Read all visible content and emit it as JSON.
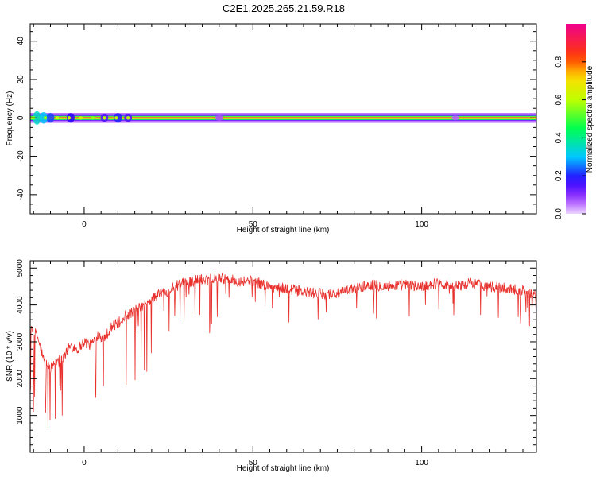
{
  "title": "C2E1.2025.265.21.59.R18",
  "chart_data": [
    {
      "type": "heatmap",
      "xlabel": "Height of straight line (km)",
      "ylabel": "Frequency (Hz)",
      "xlim": [
        -16,
        134
      ],
      "ylim": [
        -50,
        49
      ],
      "xticks": [
        0,
        50,
        100
      ],
      "yticks": [
        40,
        20,
        0,
        -20,
        -40
      ],
      "grid": false,
      "colorbar": {
        "label": "Normalized spectral amplitude",
        "range": [
          0,
          1
        ],
        "ticks": [
          0.0,
          0.2,
          0.4,
          0.6,
          0.8
        ],
        "tick_labels": [
          "0.0",
          "0.2",
          "0.4",
          "0.6",
          "0.8"
        ],
        "colormap": "rainbow (violet to magenta)"
      },
      "band": {
        "center_hz": 0,
        "halfwidth_hz": 1.5,
        "outer_halfwidth_hz": 2.6,
        "peak_amplitude": 0.95
      }
    },
    {
      "type": "line",
      "xlabel": "Height of straight line (km)",
      "ylabel": "SNR (10 * v/v)",
      "xlim": [
        -16,
        134
      ],
      "ylim": [
        0,
        5200
      ],
      "xticks": [
        0,
        50,
        100
      ],
      "yticks": [
        1000,
        2000,
        3000,
        4000,
        5000
      ],
      "grid": false,
      "line_color": "#e8302c",
      "envelope": {
        "x": [
          -16,
          -14,
          -12,
          -10,
          -8,
          -6,
          -4,
          -2,
          0,
          2,
          4,
          6,
          8,
          10,
          12,
          14,
          16,
          18,
          20,
          22,
          24,
          26,
          28,
          30,
          32,
          35,
          38,
          40,
          45,
          50,
          55,
          60,
          65,
          70,
          75,
          80,
          85,
          90,
          95,
          100,
          105,
          110,
          115,
          120,
          125,
          130,
          134
        ],
        "y": [
          3300,
          3200,
          2500,
          2300,
          2500,
          2600,
          2900,
          2800,
          3000,
          2900,
          3200,
          3100,
          3400,
          3500,
          3700,
          3800,
          3900,
          4000,
          4150,
          4300,
          4350,
          4450,
          4550,
          4600,
          4650,
          4700,
          4750,
          4750,
          4650,
          4650,
          4500,
          4450,
          4350,
          4300,
          4300,
          4450,
          4550,
          4500,
          4550,
          4500,
          4600,
          4500,
          4600,
          4500,
          4450,
          4400,
          4250
        ]
      }
    }
  ]
}
